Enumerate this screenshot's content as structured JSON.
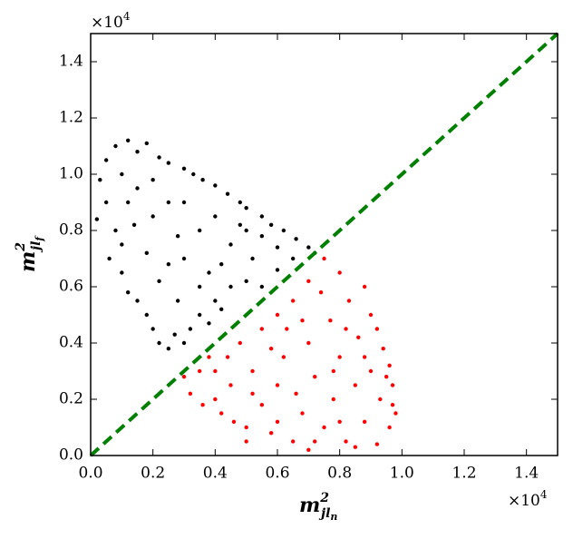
{
  "chart_data": {
    "type": "scatter",
    "xlabel": {
      "base": "m",
      "sup": "2",
      "sub": "jl",
      "subsub": "n"
    },
    "ylabel": {
      "base": "m",
      "sup": "2",
      "sub": "jl",
      "subsub": "f"
    },
    "x_offset": {
      "base": "×10",
      "exp": "4"
    },
    "y_offset": {
      "base": "×10",
      "exp": "4"
    },
    "xlim": [
      0,
      1.5
    ],
    "ylim": [
      0,
      1.5
    ],
    "xticks": [
      {
        "value": 0,
        "label": "0.0"
      },
      0.2,
      0.4,
      0.6,
      0.8,
      {
        "value": 1,
        "label": "1.0"
      },
      1.2,
      1.4
    ],
    "yticks": [
      {
        "value": 0,
        "label": "0.0"
      },
      0.2,
      0.4,
      0.6,
      0.8,
      {
        "value": 1,
        "label": "1.0"
      },
      1.2,
      1.4
    ],
    "reference_line": {
      "x": [
        0,
        1.5
      ],
      "y": [
        0,
        1.5
      ],
      "color": "#008000",
      "style": "dashed"
    },
    "series": [
      {
        "color": "#000000",
        "x": [
          0.02,
          0.03,
          0.05,
          0.08,
          0.1,
          0.12,
          0.15,
          0.18,
          0.22,
          0.25,
          0.3,
          0.33,
          0.36,
          0.4,
          0.44,
          0.48,
          0.5,
          0.55,
          0.58,
          0.62,
          0.66,
          0.7,
          0.72,
          0.05,
          0.08,
          0.06,
          0.1,
          0.12,
          0.15,
          0.18,
          0.2,
          0.22,
          0.25,
          0.27,
          0.3,
          0.32,
          0.35,
          0.38,
          0.4,
          0.42,
          0.45,
          0.5,
          0.55,
          0.6,
          0.65,
          0.12,
          0.15,
          0.2,
          0.25,
          0.28,
          0.3,
          0.35,
          0.38,
          0.4,
          0.45,
          0.48,
          0.52,
          0.55,
          0.6,
          0.18,
          0.22,
          0.25,
          0.1,
          0.14,
          0.2,
          0.3,
          0.35,
          0.28,
          0.42,
          0.5
        ],
        "y": [
          0.84,
          0.98,
          1.05,
          1.1,
          1.0,
          1.12,
          1.08,
          1.11,
          1.06,
          1.04,
          1.02,
          1.0,
          0.98,
          0.96,
          0.93,
          0.9,
          0.88,
          0.85,
          0.82,
          0.8,
          0.77,
          0.74,
          0.72,
          0.9,
          0.8,
          0.7,
          0.65,
          0.58,
          0.55,
          0.5,
          0.45,
          0.4,
          0.38,
          0.43,
          0.4,
          0.45,
          0.5,
          0.47,
          0.55,
          0.52,
          0.6,
          0.62,
          0.6,
          0.66,
          0.7,
          0.9,
          0.95,
          0.85,
          0.9,
          0.78,
          0.7,
          0.8,
          0.65,
          0.85,
          0.75,
          0.82,
          0.7,
          0.78,
          0.74,
          0.72,
          0.62,
          0.68,
          0.75,
          0.82,
          0.98,
          0.9,
          0.6,
          0.55,
          0.68,
          0.8
        ]
      },
      {
        "color": "#ff0000",
        "x": [
          0.3,
          0.32,
          0.35,
          0.38,
          0.4,
          0.42,
          0.45,
          0.48,
          0.5,
          0.52,
          0.55,
          0.55,
          0.58,
          0.6,
          0.6,
          0.62,
          0.65,
          0.65,
          0.68,
          0.7,
          0.7,
          0.72,
          0.75,
          0.75,
          0.77,
          0.78,
          0.8,
          0.8,
          0.82,
          0.83,
          0.85,
          0.86,
          0.88,
          0.88,
          0.9,
          0.9,
          0.92,
          0.93,
          0.94,
          0.95,
          0.96,
          0.97,
          0.97,
          0.98,
          0.96,
          0.85,
          0.7,
          0.6,
          0.5,
          0.44,
          0.36,
          0.4,
          0.68,
          0.74,
          0.82,
          0.78,
          0.66,
          0.58,
          0.52,
          0.92,
          0.72,
          0.8,
          0.88,
          0.63,
          0.46
        ],
        "y": [
          0.28,
          0.22,
          0.3,
          0.35,
          0.2,
          0.15,
          0.25,
          0.4,
          0.1,
          0.3,
          0.45,
          0.18,
          0.08,
          0.5,
          0.25,
          0.35,
          0.55,
          0.05,
          0.15,
          0.62,
          0.4,
          0.28,
          0.7,
          0.1,
          0.48,
          0.2,
          0.65,
          0.35,
          0.05,
          0.55,
          0.25,
          0.42,
          0.6,
          0.12,
          0.3,
          0.5,
          0.04,
          0.2,
          0.38,
          0.28,
          0.1,
          0.18,
          0.25,
          0.15,
          0.32,
          0.03,
          0.02,
          0.12,
          0.05,
          0.35,
          0.18,
          0.3,
          0.48,
          0.58,
          0.45,
          0.3,
          0.22,
          0.38,
          0.22,
          0.45,
          0.05,
          0.12,
          0.35,
          0.45,
          0.12
        ]
      }
    ]
  }
}
